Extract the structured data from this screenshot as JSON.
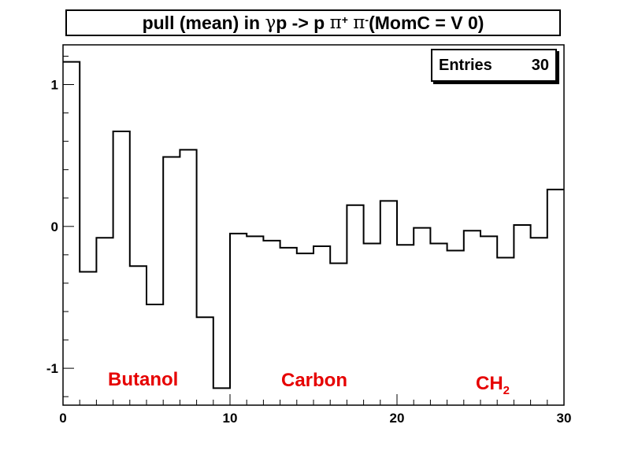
{
  "chart_data": {
    "type": "bar",
    "style": "step-histogram",
    "title_parts": {
      "prefix": "pull (mean) in ",
      "gamma": "γ",
      "mid1": " p -> p ",
      "pi1": "π",
      "sup1": "+",
      "mid2": " ",
      "pi2": "π",
      "sup2": "-",
      "suffix": " (MomC = V 0)"
    },
    "xlabel": "",
    "ylabel": "",
    "xlim": [
      0,
      30
    ],
    "ylim": [
      -1.26,
      1.28
    ],
    "x_ticks": [
      0,
      10,
      20,
      30
    ],
    "y_ticks": [
      -1,
      0,
      1
    ],
    "bin_edges": [
      0,
      1,
      2,
      3,
      4,
      5,
      6,
      7,
      8,
      9,
      10,
      11,
      12,
      13,
      14,
      15,
      16,
      17,
      18,
      19,
      20,
      21,
      22,
      23,
      24,
      25,
      26,
      27,
      28,
      29,
      30
    ],
    "values": [
      1.16,
      -0.32,
      -0.08,
      0.67,
      -0.28,
      -0.55,
      0.49,
      0.54,
      -0.64,
      -1.14,
      -0.05,
      -0.07,
      -0.1,
      -0.15,
      -0.19,
      -0.14,
      -0.26,
      0.15,
      -0.12,
      0.18,
      -0.13,
      -0.01,
      -0.12,
      -0.17,
      -0.03,
      -0.07,
      -0.22,
      0.01,
      -0.08,
      0.26
    ],
    "stats": {
      "label": "Entries",
      "value": "30"
    },
    "annotations": [
      {
        "text": "Butanol",
        "color": "#e60000"
      },
      {
        "text": "Carbon",
        "color": "#e60000"
      },
      {
        "text": "CH",
        "sub": "2",
        "color": "#e60000"
      }
    ],
    "grid": false,
    "legend": "none"
  }
}
